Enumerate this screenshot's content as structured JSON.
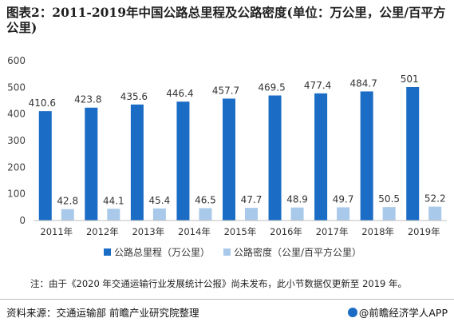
{
  "header": {
    "title": "图表2：2011-2019年中国公路总里程及公路密度(单位：万公里，公里/百平方公里)"
  },
  "chart_data": {
    "type": "bar",
    "title": "图表2：2011-2019年中国公路总里程及公路密度(单位：万公里，公里/百平方公里)",
    "categories": [
      "2011年",
      "2012年",
      "2013年",
      "2014年",
      "2015年",
      "2016年",
      "2017年",
      "2018年",
      "2019年"
    ],
    "series": [
      {
        "name": "公路总里程（万公里）",
        "values": [
          410.6,
          423.8,
          435.6,
          446.4,
          457.7,
          469.5,
          477.4,
          484.7,
          501
        ],
        "labels": [
          "410.6",
          "423.8",
          "435.6",
          "446.4",
          "457.7",
          "469.5",
          "477.4",
          "484.7",
          "501"
        ],
        "color": "#1a6cc4"
      },
      {
        "name": "公路密度（公里/百平方公里）",
        "values": [
          42.8,
          44.1,
          45.4,
          46.5,
          47.7,
          48.9,
          49.7,
          50.5,
          52.2
        ],
        "labels": [
          "42.8",
          "44.1",
          "45.4",
          "46.5",
          "47.7",
          "48.9",
          "49.7",
          "50.5",
          "52.2"
        ],
        "color": "#a8c9ea"
      }
    ],
    "yticks": [
      "0",
      "100",
      "200",
      "300",
      "400",
      "500",
      "600"
    ],
    "ylim": [
      0,
      600
    ],
    "grid": false,
    "legend": "bottom",
    "xlabel": "",
    "ylabel": ""
  },
  "note": "注：由于《2020 年交通运输行业发展统计公报》尚未发布，此小节数据仅更新至 2019 年。",
  "footer": {
    "source": "资料来源：交通运输部 前瞻产业研究院整理",
    "brand": "@前瞻经济学人APP"
  }
}
